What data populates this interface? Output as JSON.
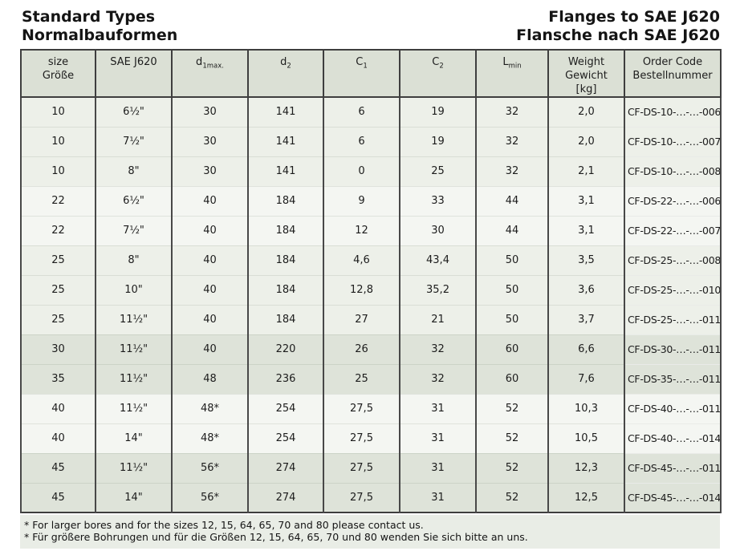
{
  "titles": {
    "left1": "Standard Types",
    "left2": "Normalbauformen",
    "right1": "Flanges to SAE J620",
    "right2": "Flansche nach SAE J620"
  },
  "table": {
    "headers": {
      "size": {
        "line1": "size",
        "line2": "Größe"
      },
      "sae": {
        "line1": "SAE J620"
      },
      "d1": {
        "base": "d",
        "sub": "1max."
      },
      "d2": {
        "base": "d",
        "sub": "2"
      },
      "c1": {
        "base": "C",
        "sub": "1"
      },
      "c2": {
        "base": "C",
        "sub": "2"
      },
      "lmin": {
        "base": "L",
        "sub": "min"
      },
      "weight": {
        "line1": "Weight",
        "line2": "Gewicht",
        "line3": "[kg]"
      },
      "order": {
        "line1": "Order Code",
        "line2": "Bestellnummer"
      }
    },
    "column_names": [
      "cell-size",
      "cell-sae-j620",
      "cell-d1max",
      "cell-d2",
      "cell-c1",
      "cell-c2",
      "cell-lmin",
      "cell-weight-kg",
      "cell-order-code"
    ],
    "rows": [
      {
        "shade": "a",
        "cells": [
          "10",
          "6½\"",
          "30",
          "141",
          "6",
          "19",
          "32",
          "2,0",
          "CF-DS-10-…-…-006"
        ]
      },
      {
        "shade": "a",
        "cells": [
          "10",
          "7½\"",
          "30",
          "141",
          "6",
          "19",
          "32",
          "2,0",
          "CF-DS-10-…-…-007"
        ]
      },
      {
        "shade": "a",
        "cells": [
          "10",
          "8\"",
          "30",
          "141",
          "0",
          "25",
          "32",
          "2,1",
          "CF-DS-10-…-…-008"
        ]
      },
      {
        "shade": "b",
        "cells": [
          "22",
          "6½\"",
          "40",
          "184",
          "9",
          "33",
          "44",
          "3,1",
          "CF-DS-22-…-…-006"
        ]
      },
      {
        "shade": "b",
        "cells": [
          "22",
          "7½\"",
          "40",
          "184",
          "12",
          "30",
          "44",
          "3,1",
          "CF-DS-22-…-…-007"
        ]
      },
      {
        "shade": "a",
        "cells": [
          "25",
          "8\"",
          "40",
          "184",
          "4,6",
          "43,4",
          "50",
          "3,5",
          "CF-DS-25-…-…-008"
        ]
      },
      {
        "shade": "a",
        "cells": [
          "25",
          "10\"",
          "40",
          "184",
          "12,8",
          "35,2",
          "50",
          "3,6",
          "CF-DS-25-…-…-010"
        ]
      },
      {
        "shade": "a",
        "cells": [
          "25",
          "11½\"",
          "40",
          "184",
          "27",
          "21",
          "50",
          "3,7",
          "CF-DS-25-…-…-011"
        ]
      },
      {
        "shade": "c",
        "cells": [
          "30",
          "11½\"",
          "40",
          "220",
          "26",
          "32",
          "60",
          "6,6",
          "CF-DS-30-…-…-011"
        ]
      },
      {
        "shade": "c",
        "cells": [
          "35",
          "11½\"",
          "48",
          "236",
          "25",
          "32",
          "60",
          "7,6",
          "CF-DS-35-…-…-011"
        ]
      },
      {
        "shade": "b",
        "cells": [
          "40",
          "11½\"",
          "48*",
          "254",
          "27,5",
          "31",
          "52",
          "10,3",
          "CF-DS-40-…-…-011"
        ]
      },
      {
        "shade": "b",
        "cells": [
          "40",
          "14\"",
          "48*",
          "254",
          "27,5",
          "31",
          "52",
          "10,5",
          "CF-DS-40-…-…-014"
        ]
      },
      {
        "shade": "c",
        "cells": [
          "45",
          "11½\"",
          "56*",
          "274",
          "27,5",
          "31",
          "52",
          "12,3",
          "CF-DS-45-…-…-011"
        ]
      },
      {
        "shade": "c",
        "cells": [
          "45",
          "14\"",
          "56*",
          "274",
          "27,5",
          "31",
          "52",
          "12,5",
          "CF-DS-45-…-…-014"
        ]
      }
    ]
  },
  "footnotes": [
    "* For larger bores and for the sizes 12, 15, 64, 65, 70 and 80 please contact us.",
    "* Für größere Bohrungen und für die Größen 12, 15, 64, 65, 70 und 80 wenden Sie sich bitte an uns."
  ],
  "colors": {
    "header_bg": "#dbe0d5",
    "row_light_green": "#edf0e9",
    "row_white": "#f4f6f2",
    "row_dark_green": "#dee3d9",
    "footnote_bg": "#e9ede6",
    "border": "#3e3e3e"
  }
}
